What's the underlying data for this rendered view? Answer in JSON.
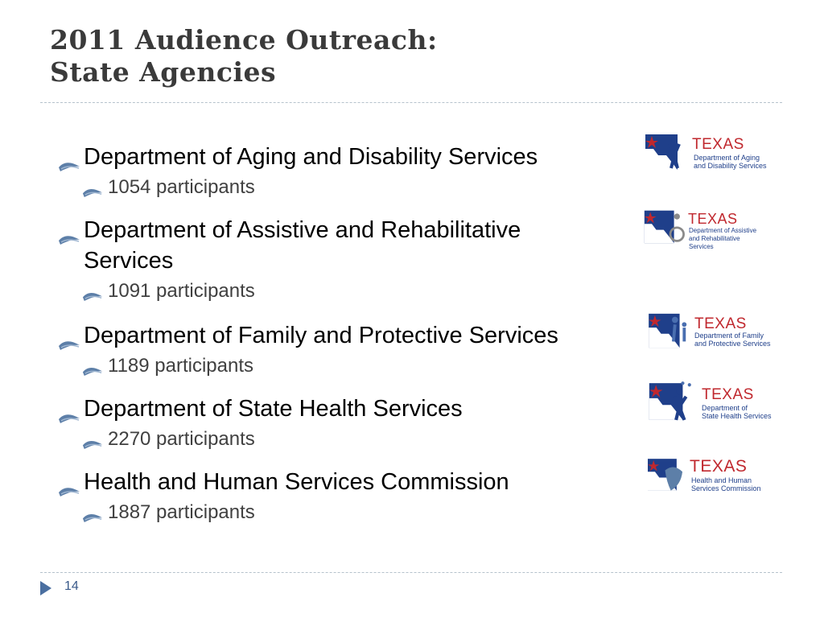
{
  "slide": {
    "title_line1": "2011 Audience Outreach:",
    "title_line2": "State Agencies",
    "page_number": "14"
  },
  "agencies": [
    {
      "name": "Department of Aging and Disability Services",
      "participants": "1054 participants",
      "logo_state": "TEXAS",
      "logo_line1": "Department of Aging",
      "logo_line2": "and Disability Services"
    },
    {
      "name_line1": "Department of Assistive and Rehabilitative",
      "name_line2": "Services",
      "participants": "1091 participants",
      "logo_state": "TEXAS",
      "logo_line1": "Department of Assistive",
      "logo_line2": "and Rehabilitative Services"
    },
    {
      "name": "Department of Family and Protective Services",
      "participants": "1189 participants",
      "logo_state": "TEXAS",
      "logo_line1": "Department of Family",
      "logo_line2": "and Protective Services"
    },
    {
      "name": "Department of State Health Services",
      "participants": "2270 participants",
      "logo_state": "TEXAS",
      "logo_line1": "Department of",
      "logo_line2": "State Health Services"
    },
    {
      "name": "Health and Human Services Commission",
      "participants": "1887 participants",
      "logo_state": "TEXAS",
      "logo_line1": "Health and Human",
      "logo_line2": "Services Commission"
    }
  ],
  "colors": {
    "logo_red": "#c0282e",
    "logo_blue": "#1f3f8a",
    "bullet_blue": "#5d7fa8",
    "rule": "#b6c2cc"
  },
  "icons": {
    "bullet": "winged-arrow-icon",
    "nav": "triangle-right-icon"
  }
}
